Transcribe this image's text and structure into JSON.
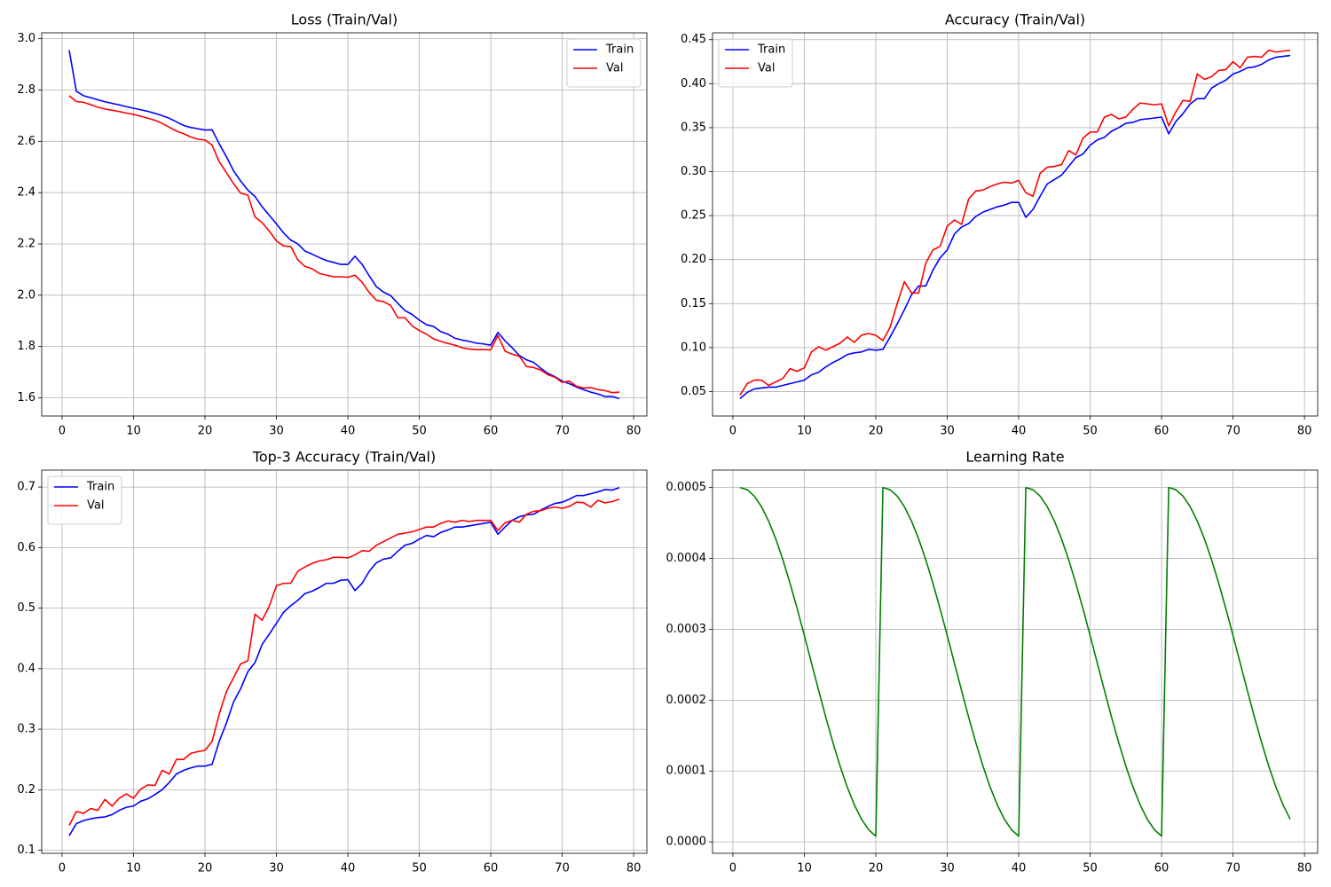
{
  "chart_data": [
    {
      "type": "line",
      "title": "Loss (Train/Val)",
      "x": [
        1,
        2,
        3,
        4,
        5,
        6,
        7,
        8,
        9,
        10,
        11,
        12,
        13,
        14,
        15,
        16,
        17,
        18,
        19,
        20,
        21,
        22,
        23,
        24,
        25,
        26,
        27,
        28,
        29,
        30,
        31,
        32,
        33,
        34,
        35,
        36,
        37,
        38,
        39,
        40,
        41,
        42,
        43,
        44,
        45,
        46,
        47,
        48,
        49,
        50,
        51,
        52,
        53,
        54,
        55,
        56,
        57,
        58,
        59,
        60,
        61,
        62,
        63,
        64,
        65,
        66,
        67,
        68,
        69,
        70,
        71,
        72,
        73,
        74,
        75,
        76,
        77,
        78
      ],
      "series": [
        {
          "name": "Train",
          "color": "#0000ff",
          "values": [
            2.955,
            2.795,
            2.778,
            2.77,
            2.762,
            2.754,
            2.748,
            2.742,
            2.735,
            2.729,
            2.723,
            2.717,
            2.709,
            2.7,
            2.69,
            2.676,
            2.662,
            2.654,
            2.649,
            2.644,
            2.645,
            2.59,
            2.54,
            2.485,
            2.445,
            2.41,
            2.385,
            2.345,
            2.312,
            2.278,
            2.243,
            2.215,
            2.2,
            2.172,
            2.16,
            2.147,
            2.135,
            2.128,
            2.12,
            2.12,
            2.152,
            2.12,
            2.075,
            2.033,
            2.012,
            1.998,
            1.968,
            1.94,
            1.925,
            1.903,
            1.885,
            1.878,
            1.858,
            1.848,
            1.832,
            1.825,
            1.82,
            1.813,
            1.81,
            1.805,
            1.855,
            1.822,
            1.795,
            1.765,
            1.748,
            1.738,
            1.715,
            1.695,
            1.682,
            1.665,
            1.655,
            1.642,
            1.632,
            1.622,
            1.615,
            1.605,
            1.605,
            1.597
          ]
        },
        {
          "name": "Val",
          "color": "#ff0000",
          "values": [
            2.778,
            2.755,
            2.752,
            2.743,
            2.733,
            2.726,
            2.721,
            2.716,
            2.71,
            2.705,
            2.698,
            2.69,
            2.682,
            2.67,
            2.655,
            2.64,
            2.63,
            2.617,
            2.608,
            2.605,
            2.585,
            2.52,
            2.478,
            2.435,
            2.398,
            2.39,
            2.305,
            2.283,
            2.25,
            2.212,
            2.192,
            2.19,
            2.138,
            2.112,
            2.103,
            2.085,
            2.078,
            2.072,
            2.072,
            2.07,
            2.078,
            2.05,
            2.01,
            1.98,
            1.975,
            1.96,
            1.912,
            1.912,
            1.88,
            1.862,
            1.848,
            1.83,
            1.82,
            1.812,
            1.805,
            1.795,
            1.79,
            1.788,
            1.788,
            1.787,
            1.843,
            1.782,
            1.77,
            1.762,
            1.722,
            1.718,
            1.708,
            1.69,
            1.68,
            1.66,
            1.665,
            1.645,
            1.638,
            1.64,
            1.632,
            1.628,
            1.62,
            1.622
          ]
        }
      ],
      "xlim": [
        -2.85,
        81.85
      ],
      "xticks": [
        0,
        10,
        20,
        30,
        40,
        50,
        60,
        70,
        80
      ],
      "ylim": [
        1.529,
        3.023
      ],
      "yticks": [
        1.6,
        1.8,
        {
          "value": 2,
          "label": "2.0"
        },
        2.2,
        2.4,
        2.6,
        2.8,
        {
          "value": 3,
          "label": "3.0"
        }
      ],
      "grid": true,
      "legend": "upper right"
    },
    {
      "type": "line",
      "title": "Accuracy (Train/Val)",
      "x": [
        1,
        2,
        3,
        4,
        5,
        6,
        7,
        8,
        9,
        10,
        11,
        12,
        13,
        14,
        15,
        16,
        17,
        18,
        19,
        20,
        21,
        22,
        23,
        24,
        25,
        26,
        27,
        28,
        29,
        30,
        31,
        32,
        33,
        34,
        35,
        36,
        37,
        38,
        39,
        40,
        41,
        42,
        43,
        44,
        45,
        46,
        47,
        48,
        49,
        50,
        51,
        52,
        53,
        54,
        55,
        56,
        57,
        58,
        59,
        60,
        61,
        62,
        63,
        64,
        65,
        66,
        67,
        68,
        69,
        70,
        71,
        72,
        73,
        74,
        75,
        76,
        77,
        78
      ],
      "series": [
        {
          "name": "Train",
          "color": "#0000ff",
          "values": [
            0.042,
            0.049,
            0.053,
            0.054,
            0.055,
            0.055,
            0.057,
            0.059,
            0.061,
            0.063,
            0.069,
            0.072,
            0.078,
            0.083,
            0.087,
            0.092,
            0.094,
            0.095,
            0.098,
            0.097,
            0.098,
            0.112,
            0.127,
            0.143,
            0.16,
            0.17,
            0.17,
            0.188,
            0.202,
            0.211,
            0.229,
            0.237,
            0.241,
            0.249,
            0.254,
            0.257,
            0.26,
            0.262,
            0.265,
            0.265,
            0.248,
            0.257,
            0.272,
            0.286,
            0.291,
            0.296,
            0.306,
            0.316,
            0.32,
            0.33,
            0.336,
            0.339,
            0.346,
            0.35,
            0.355,
            0.356,
            0.359,
            0.36,
            0.361,
            0.362,
            0.343,
            0.357,
            0.366,
            0.377,
            0.383,
            0.383,
            0.395,
            0.4,
            0.404,
            0.411,
            0.414,
            0.418,
            0.419,
            0.422,
            0.427,
            0.43,
            0.431,
            0.432
          ]
        },
        {
          "name": "Val",
          "color": "#ff0000",
          "values": [
            0.046,
            0.059,
            0.063,
            0.063,
            0.057,
            0.061,
            0.065,
            0.076,
            0.073,
            0.077,
            0.095,
            0.101,
            0.097,
            0.101,
            0.105,
            0.112,
            0.106,
            0.114,
            0.116,
            0.114,
            0.108,
            0.123,
            0.15,
            0.175,
            0.162,
            0.162,
            0.196,
            0.211,
            0.215,
            0.238,
            0.245,
            0.24,
            0.269,
            0.278,
            0.279,
            0.283,
            0.286,
            0.288,
            0.287,
            0.29,
            0.276,
            0.272,
            0.298,
            0.305,
            0.306,
            0.308,
            0.324,
            0.319,
            0.338,
            0.345,
            0.345,
            0.362,
            0.365,
            0.36,
            0.362,
            0.371,
            0.378,
            0.377,
            0.376,
            0.377,
            0.352,
            0.368,
            0.381,
            0.38,
            0.411,
            0.405,
            0.408,
            0.415,
            0.416,
            0.425,
            0.418,
            0.43,
            0.431,
            0.43,
            0.438,
            0.436,
            0.437,
            0.438
          ]
        }
      ],
      "xlim": [
        -2.85,
        81.85
      ],
      "xticks": [
        0,
        10,
        20,
        30,
        40,
        50,
        60,
        70,
        80
      ],
      "ylim": [
        0.0222,
        0.4578
      ],
      "yticks": [
        0.05,
        {
          "value": 0.1,
          "label": "0.10"
        },
        0.15,
        {
          "value": 0.2,
          "label": "0.20"
        },
        0.25,
        {
          "value": 0.3,
          "label": "0.30"
        },
        0.35,
        {
          "value": 0.4,
          "label": "0.40"
        },
        0.45
      ],
      "grid": true,
      "legend": "upper left"
    },
    {
      "type": "line",
      "title": "Top-3 Accuracy (Train/Val)",
      "x": [
        1,
        2,
        3,
        4,
        5,
        6,
        7,
        8,
        9,
        10,
        11,
        12,
        13,
        14,
        15,
        16,
        17,
        18,
        19,
        20,
        21,
        22,
        23,
        24,
        25,
        26,
        27,
        28,
        29,
        30,
        31,
        32,
        33,
        34,
        35,
        36,
        37,
        38,
        39,
        40,
        41,
        42,
        43,
        44,
        45,
        46,
        47,
        48,
        49,
        50,
        51,
        52,
        53,
        54,
        55,
        56,
        57,
        58,
        59,
        60,
        61,
        62,
        63,
        64,
        65,
        66,
        67,
        68,
        69,
        70,
        71,
        72,
        73,
        74,
        75,
        76,
        77,
        78
      ],
      "series": [
        {
          "name": "Train",
          "color": "#0000ff",
          "values": [
            0.124,
            0.144,
            0.149,
            0.152,
            0.154,
            0.155,
            0.159,
            0.166,
            0.171,
            0.173,
            0.181,
            0.185,
            0.192,
            0.2,
            0.212,
            0.226,
            0.232,
            0.236,
            0.239,
            0.239,
            0.242,
            0.28,
            0.31,
            0.345,
            0.367,
            0.395,
            0.41,
            0.44,
            0.457,
            0.475,
            0.493,
            0.504,
            0.513,
            0.524,
            0.528,
            0.534,
            0.541,
            0.541,
            0.546,
            0.547,
            0.529,
            0.541,
            0.561,
            0.575,
            0.581,
            0.583,
            0.594,
            0.604,
            0.607,
            0.614,
            0.62,
            0.618,
            0.625,
            0.629,
            0.634,
            0.634,
            0.636,
            0.638,
            0.64,
            0.642,
            0.622,
            0.634,
            0.645,
            0.651,
            0.654,
            0.655,
            0.662,
            0.668,
            0.673,
            0.675,
            0.68,
            0.686,
            0.686,
            0.689,
            0.692,
            0.696,
            0.695,
            0.699
          ]
        },
        {
          "name": "Val",
          "color": "#ff0000",
          "values": [
            0.141,
            0.164,
            0.161,
            0.169,
            0.166,
            0.184,
            0.173,
            0.186,
            0.193,
            0.186,
            0.201,
            0.208,
            0.207,
            0.232,
            0.226,
            0.25,
            0.25,
            0.26,
            0.263,
            0.265,
            0.28,
            0.325,
            0.362,
            0.385,
            0.408,
            0.413,
            0.49,
            0.48,
            0.503,
            0.537,
            0.541,
            0.541,
            0.561,
            0.568,
            0.574,
            0.578,
            0.58,
            0.584,
            0.584,
            0.583,
            0.588,
            0.595,
            0.594,
            0.604,
            0.61,
            0.616,
            0.622,
            0.624,
            0.626,
            0.63,
            0.634,
            0.634,
            0.64,
            0.644,
            0.642,
            0.645,
            0.643,
            0.645,
            0.645,
            0.645,
            0.628,
            0.641,
            0.645,
            0.642,
            0.655,
            0.66,
            0.661,
            0.665,
            0.667,
            0.665,
            0.668,
            0.675,
            0.674,
            0.667,
            0.678,
            0.674,
            0.676,
            0.68
          ]
        }
      ],
      "xlim": [
        -2.85,
        81.85
      ],
      "xticks": [
        0,
        10,
        20,
        30,
        40,
        50,
        60,
        70,
        80
      ],
      "ylim": [
        0.095,
        0.728
      ],
      "yticks": [
        0.1,
        0.2,
        0.3,
        0.4,
        0.5,
        0.6,
        0.7
      ],
      "grid": true,
      "legend": "upper left"
    },
    {
      "type": "line",
      "title": "Learning Rate",
      "x": [
        1,
        2,
        3,
        4,
        5,
        6,
        7,
        8,
        9,
        10,
        11,
        12,
        13,
        14,
        15,
        16,
        17,
        18,
        19,
        20,
        21,
        22,
        23,
        24,
        25,
        26,
        27,
        28,
        29,
        30,
        31,
        32,
        33,
        34,
        35,
        36,
        37,
        38,
        39,
        40,
        41,
        42,
        43,
        44,
        45,
        46,
        47,
        48,
        49,
        50,
        51,
        52,
        53,
        54,
        55,
        56,
        57,
        58,
        59,
        60,
        61,
        62,
        63,
        64,
        65,
        66,
        67,
        68,
        69,
        70,
        71,
        72,
        73,
        74,
        75,
        76,
        77,
        78
      ],
      "color": "#008000",
      "values": [
        0.0005,
        0.000497,
        0.0004879,
        0.000473,
        0.0004527,
        0.0004275,
        0.000398,
        0.0003649,
        0.000329,
        0.0002912,
        0.0002525,
        0.0002138,
        0.000176,
        0.0001401,
        0.000107,
        7.75e-05,
        5.23e-05,
        3.2e-05,
        1.71e-05,
        8.1e-06,
        0.0005,
        0.000497,
        0.0004879,
        0.000473,
        0.0004527,
        0.0004275,
        0.000398,
        0.0003649,
        0.000329,
        0.0002912,
        0.0002525,
        0.0002138,
        0.000176,
        0.0001401,
        0.000107,
        7.75e-05,
        5.23e-05,
        3.2e-05,
        1.71e-05,
        8.1e-06,
        0.0005,
        0.000497,
        0.0004879,
        0.000473,
        0.0004527,
        0.0004275,
        0.000398,
        0.0003649,
        0.000329,
        0.0002912,
        0.0002525,
        0.0002138,
        0.000176,
        0.0001401,
        0.000107,
        7.75e-05,
        5.23e-05,
        3.2e-05,
        1.71e-05,
        8.1e-06,
        0.0005,
        0.000497,
        0.0004879,
        0.000473,
        0.0004527,
        0.0004275,
        0.000398,
        0.0003649,
        0.000329,
        0.0002912,
        0.0002525,
        0.0002138,
        0.000176,
        0.0001401,
        0.000107,
        7.75e-05,
        5.23e-05,
        3.2e-05
      ],
      "xlim": [
        -2.85,
        81.85
      ],
      "xticks": [
        0,
        10,
        20,
        30,
        40,
        50,
        60,
        70,
        80
      ],
      "ylim": [
        -1.61e-05,
        0.0005246
      ],
      "yticks": [
        {
          "value": 0,
          "label": "0.0000"
        },
        {
          "value": 0.0001,
          "label": "0.0001"
        },
        {
          "value": 0.0002,
          "label": "0.0002"
        },
        {
          "value": 0.0003,
          "label": "0.0003"
        },
        {
          "value": 0.0004,
          "label": "0.0004"
        },
        {
          "value": 0.0005,
          "label": "0.0005"
        }
      ],
      "grid": true
    }
  ]
}
